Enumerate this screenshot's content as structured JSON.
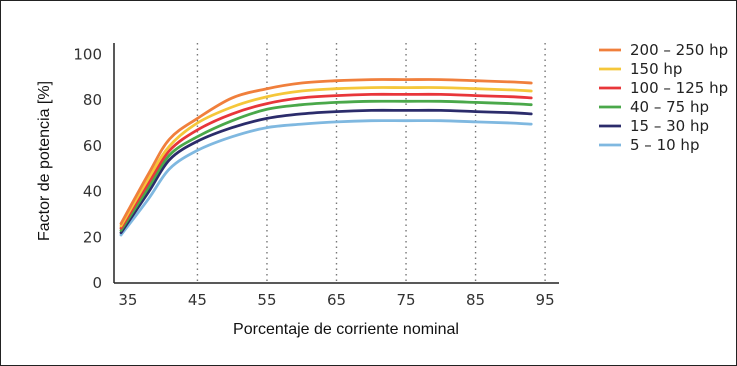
{
  "chart_data": {
    "type": "line",
    "title": "",
    "xlabel": "Porcentaje de corriente nominal",
    "ylabel": "Factor de potencia [%]",
    "xlim": [
      33,
      97
    ],
    "ylim": [
      0,
      105
    ],
    "xticks": [
      "35",
      "45",
      "55",
      "65",
      "75",
      "85",
      "95"
    ],
    "yticks": [
      "0",
      "20",
      "40",
      "60",
      "80",
      "100"
    ],
    "grid": "vertical dotted",
    "legend_position": "right",
    "x": [
      34,
      38,
      41,
      45,
      50,
      55,
      60,
      65,
      70,
      75,
      80,
      85,
      90,
      93
    ],
    "series": [
      {
        "name": "200 – 250 hp",
        "color": "#f07f3c",
        "values": [
          26,
          48,
          63,
          72,
          81,
          85,
          87.5,
          88.5,
          89,
          89,
          89,
          88.5,
          88,
          87.5
        ]
      },
      {
        "name": "150 hp",
        "color": "#f5c73a",
        "values": [
          25,
          46,
          60,
          70,
          77,
          81.5,
          84,
          85,
          85.5,
          85.5,
          85.5,
          85,
          84.5,
          84
        ]
      },
      {
        "name": "100 – 125 hp",
        "color": "#e8363a",
        "values": [
          24,
          44,
          58,
          67,
          74,
          78.5,
          81,
          82,
          82.5,
          82.5,
          82.5,
          82,
          81.5,
          81
        ]
      },
      {
        "name": "40 – 75 hp",
        "color": "#4aa84a",
        "values": [
          23,
          42,
          56,
          64,
          71,
          76,
          78,
          79,
          79.5,
          79.5,
          79.5,
          79,
          78.5,
          78
        ]
      },
      {
        "name": "15 – 30 hp",
        "color": "#2b2c6b",
        "values": [
          22,
          40,
          54,
          62,
          68,
          72,
          74,
          75,
          75.5,
          75.5,
          75.5,
          75,
          74.5,
          74
        ]
      },
      {
        "name": "5 – 10 hp",
        "color": "#7fb8e0",
        "values": [
          21,
          37,
          50,
          58,
          64,
          68,
          69.5,
          70.5,
          71,
          71,
          71,
          70.5,
          70,
          69.5
        ]
      }
    ]
  }
}
